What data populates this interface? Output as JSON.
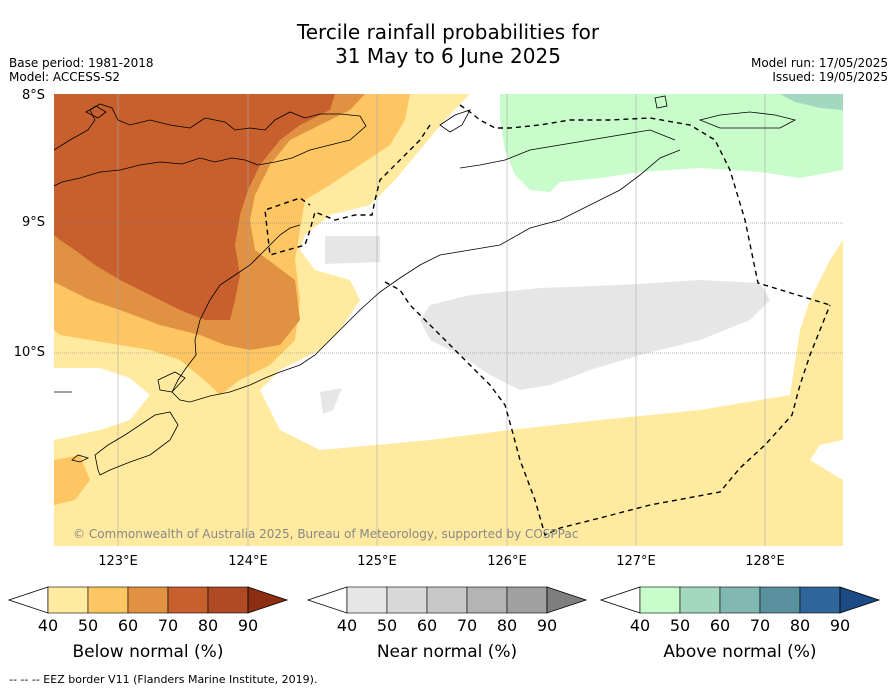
{
  "title_line1": "Tercile rainfall probabilities for",
  "title_line2": "31 May to 6 June 2025",
  "base_period": "Base period: 1981-2018",
  "model": "Model: ACCESS-S2",
  "model_run": "Model run: 17/05/2025",
  "issued": "Issued: 19/05/2025",
  "lat_labels": [
    "8°S",
    "9°S",
    "10°S"
  ],
  "lon_labels": [
    "123°E",
    "124°E",
    "125°E",
    "126°E",
    "127°E",
    "128°E"
  ],
  "copyright": "© Commonwealth of Australia 2025, Bureau of Meteorology, supported by COSPPac",
  "legends": [
    {
      "label": "Below normal (%)",
      "ticks": [
        "40",
        "50",
        "60",
        "70",
        "80",
        "90"
      ],
      "colors": [
        "#ffeaa0",
        "#fdc662",
        "#e19142",
        "#c8602e",
        "#b04a26",
        "#8c2e12"
      ]
    },
    {
      "label": "Near normal (%)",
      "ticks": [
        "40",
        "50",
        "60",
        "70",
        "80",
        "90"
      ],
      "colors": [
        "#e6e6e6",
        "#d8d8d8",
        "#c8c8c8",
        "#b4b4b4",
        "#a0a0a0",
        "#7e7e7e"
      ]
    },
    {
      "label": "Above normal (%)",
      "ticks": [
        "40",
        "50",
        "60",
        "70",
        "80",
        "90"
      ],
      "colors": [
        "#c8fcca",
        "#a3d8c0",
        "#80b7b0",
        "#5a919e",
        "#2e6699",
        "#1b4a84"
      ]
    }
  ],
  "footnote": "--  --  -- EEZ border V11 (Flanders Marine Institute, 2019)."
}
